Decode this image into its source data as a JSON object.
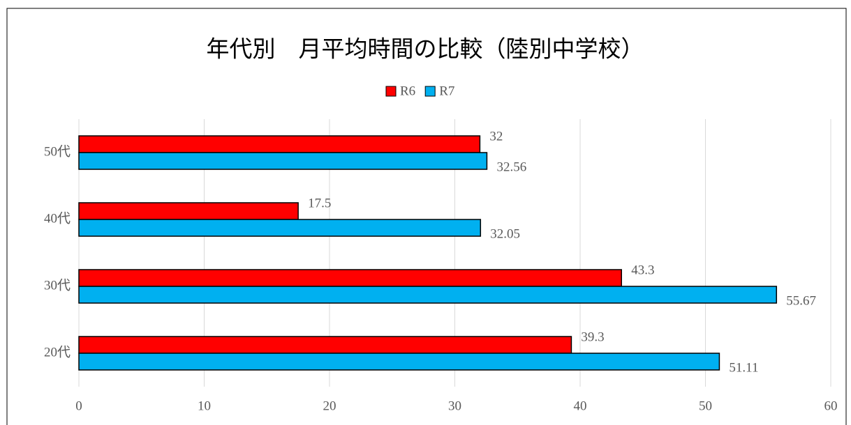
{
  "chart_data": {
    "type": "barh",
    "title": "年代別　月平均時間の比較（陸別中学校）",
    "categories": [
      "20代",
      "30代",
      "40代",
      "50代"
    ],
    "series": [
      {
        "name": "R6",
        "color": "#ff0000",
        "values": [
          39.3,
          43.3,
          17.5,
          32
        ]
      },
      {
        "name": "R7",
        "color": "#00b0f0",
        "values": [
          51.11,
          55.67,
          32.05,
          32.56
        ]
      }
    ],
    "xlim": [
      0,
      60
    ],
    "xticks": [
      0,
      10,
      20,
      30,
      40,
      50,
      60
    ],
    "grid": true,
    "legend": "top"
  }
}
